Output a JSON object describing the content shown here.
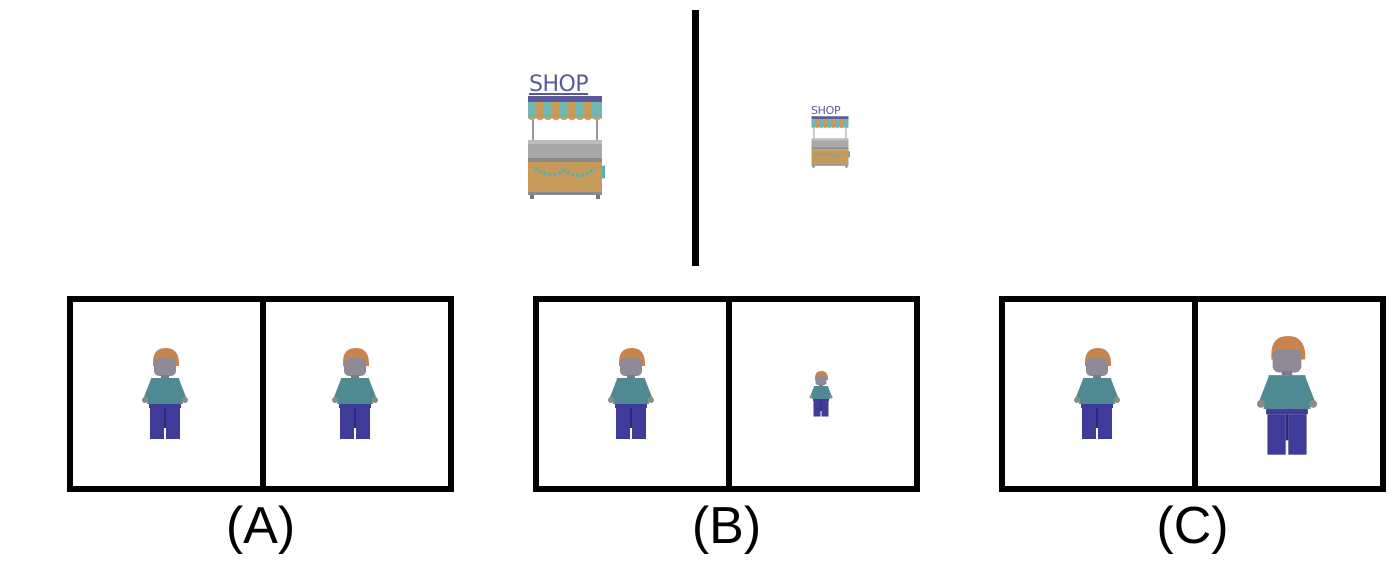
{
  "shop": {
    "sign_text": "SHOP"
  },
  "colors": {
    "awning_stripe_a": "#6fb7b0",
    "awning_stripe_b": "#c89a5a",
    "sign": "#5a5a9a",
    "cart_body": "#c89a5a",
    "cart_metal": "#9a9a9a",
    "garland": "#4fb3ae",
    "figure_hair": "#c8834e",
    "figure_face": "#8f8a95",
    "figure_torso": "#4f8a93",
    "figure_legs": "#3f3b98",
    "frame": "#000000"
  },
  "options": [
    {
      "label": "(A)",
      "left_figure_scale": "same",
      "right_figure_scale": "same"
    },
    {
      "label": "(B)",
      "left_figure_scale": "same",
      "right_figure_scale": "smaller"
    },
    {
      "label": "(C)",
      "left_figure_scale": "same",
      "right_figure_scale": "larger"
    }
  ]
}
